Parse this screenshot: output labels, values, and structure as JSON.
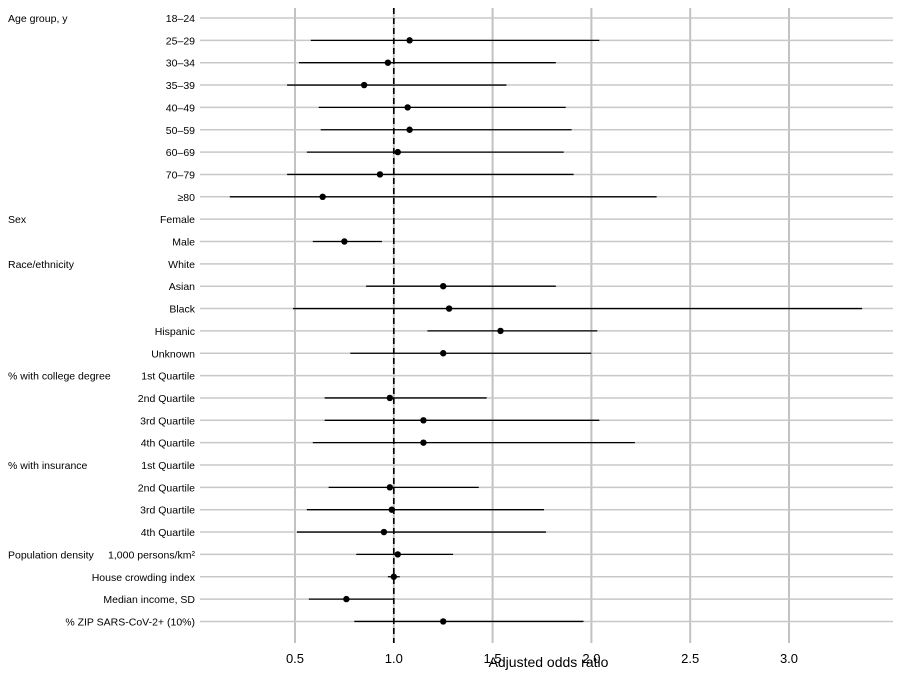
{
  "chart_data": {
    "type": "forest",
    "xlabel": "Adjusted odds ratio",
    "xlim": [
      0.0,
      3.5
    ],
    "xticks": [
      0.5,
      1.0,
      1.5,
      2.0,
      2.5,
      3.0
    ],
    "xtick_labels": [
      "0.5",
      "1.0",
      "1.5",
      "2.0",
      "2.5",
      "3.0"
    ],
    "reference_line": 1.0,
    "grid": "vertical",
    "rows": [
      {
        "group": "Age group, y",
        "label": "18–24",
        "or": null,
        "lo": null,
        "hi": null
      },
      {
        "group": "",
        "label": "25–29",
        "or": 1.08,
        "lo": 0.58,
        "hi": 2.04
      },
      {
        "group": "",
        "label": "30–34",
        "or": 0.97,
        "lo": 0.52,
        "hi": 1.82
      },
      {
        "group": "",
        "label": "35–39",
        "or": 0.85,
        "lo": 0.46,
        "hi": 1.57
      },
      {
        "group": "",
        "label": "40–49",
        "or": 1.07,
        "lo": 0.62,
        "hi": 1.87
      },
      {
        "group": "",
        "label": "50–59",
        "or": 1.08,
        "lo": 0.63,
        "hi": 1.9
      },
      {
        "group": "",
        "label": "60–69",
        "or": 1.02,
        "lo": 0.56,
        "hi": 1.86
      },
      {
        "group": "",
        "label": "70–79",
        "or": 0.93,
        "lo": 0.46,
        "hi": 1.91
      },
      {
        "group": "",
        "label": "≥80",
        "or": 0.64,
        "lo": 0.17,
        "hi": 2.33
      },
      {
        "group": "Sex",
        "label": "Female",
        "or": null,
        "lo": null,
        "hi": null
      },
      {
        "group": "",
        "label": "Male",
        "or": 0.75,
        "lo": 0.59,
        "hi": 0.94
      },
      {
        "group": "Race/ethnicity",
        "label": "White",
        "or": null,
        "lo": null,
        "hi": null
      },
      {
        "group": "",
        "label": "Asian",
        "or": 1.25,
        "lo": 0.86,
        "hi": 1.82
      },
      {
        "group": "",
        "label": "Black",
        "or": 1.28,
        "lo": 0.49,
        "hi": 3.37
      },
      {
        "group": "",
        "label": "Hispanic",
        "or": 1.54,
        "lo": 1.17,
        "hi": 2.03
      },
      {
        "group": "",
        "label": "Unknown",
        "or": 1.25,
        "lo": 0.78,
        "hi": 2.0
      },
      {
        "group": "% with college degree",
        "label": "1st Quartile",
        "or": null,
        "lo": null,
        "hi": null
      },
      {
        "group": "",
        "label": "2nd Quartile",
        "or": 0.98,
        "lo": 0.65,
        "hi": 1.47
      },
      {
        "group": "",
        "label": "3rd Quartile",
        "or": 1.15,
        "lo": 0.65,
        "hi": 2.04
      },
      {
        "group": "",
        "label": "4th Quartile",
        "or": 1.15,
        "lo": 0.59,
        "hi": 2.22
      },
      {
        "group": "% with insurance",
        "label": "1st Quartile",
        "or": null,
        "lo": null,
        "hi": null
      },
      {
        "group": "",
        "label": "2nd Quartile",
        "or": 0.98,
        "lo": 0.67,
        "hi": 1.43
      },
      {
        "group": "",
        "label": "3rd Quartile",
        "or": 0.99,
        "lo": 0.56,
        "hi": 1.76
      },
      {
        "group": "",
        "label": "4th Quartile",
        "or": 0.95,
        "lo": 0.51,
        "hi": 1.77
      },
      {
        "group": "Population density",
        "label": "1,000 persons/km²",
        "or": 1.02,
        "lo": 0.81,
        "hi": 1.3
      },
      {
        "group": "",
        "label": "House crowding index",
        "or": 1.0,
        "lo": 0.97,
        "hi": 1.03
      },
      {
        "group": "",
        "label": "Median income, SD",
        "or": 0.76,
        "lo": 0.57,
        "hi": 1.0
      },
      {
        "group": "",
        "label": "% ZIP SARS-CoV-2+ (10%)",
        "or": 1.25,
        "lo": 0.8,
        "hi": 1.96
      }
    ]
  }
}
